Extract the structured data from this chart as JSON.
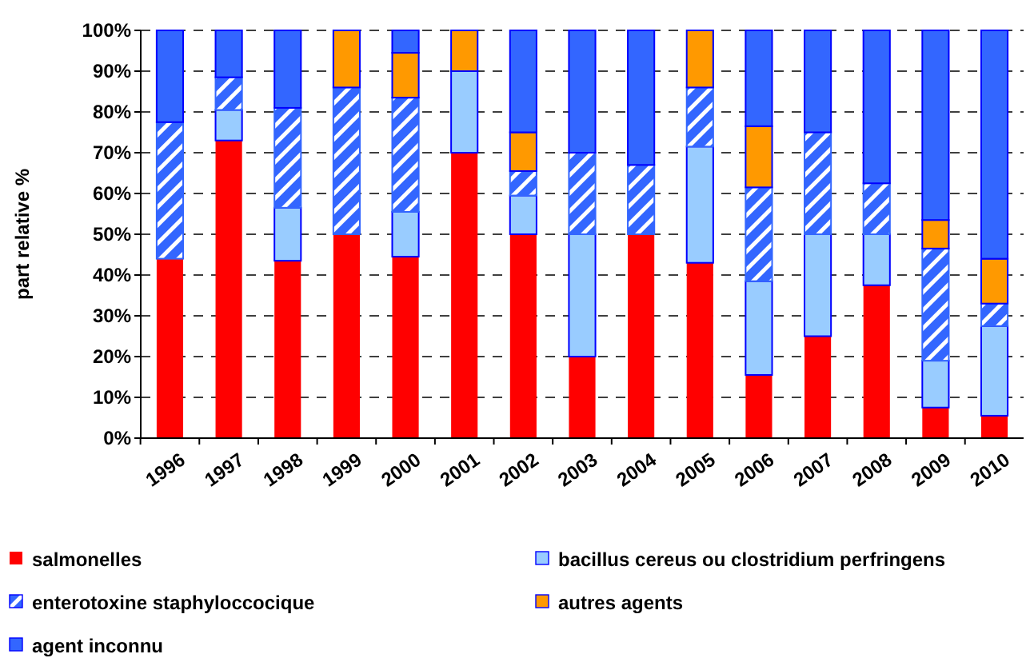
{
  "chart_data": {
    "type": "bar",
    "stacked": true,
    "ylabel": "part relative %",
    "categories": [
      "1996",
      "1997",
      "1998",
      "1999",
      "2000",
      "2001",
      "2002",
      "2003",
      "2004",
      "2005",
      "2006",
      "2007",
      "2008",
      "2009",
      "2010"
    ],
    "series": [
      {
        "name": "salmonelles",
        "color": "#ff0000",
        "values": [
          44,
          73,
          43.5,
          50,
          44.5,
          70,
          50,
          20,
          50,
          43,
          15.5,
          25,
          37.5,
          7.5,
          5.5
        ]
      },
      {
        "name": "bacillus cereus ou clostridium perfringens",
        "color": "#99ccff",
        "values": [
          0,
          7.5,
          13,
          0,
          11,
          20,
          9.5,
          30,
          0,
          28.5,
          23,
          25,
          12.5,
          11.5,
          22
        ]
      },
      {
        "name": "enterotoxine staphyloccocique",
        "color": "#3366ff",
        "values": [
          33.5,
          8,
          24.5,
          36,
          28,
          0,
          6,
          20,
          17,
          14.5,
          23,
          25,
          12.5,
          27.5,
          5.5
        ]
      },
      {
        "name": "autres agents",
        "color": "#ff9900",
        "values": [
          0,
          0,
          0,
          14,
          11,
          10,
          9.5,
          0,
          0,
          14,
          15,
          0,
          0,
          7,
          11
        ]
      },
      {
        "name": "agent inconnu",
        "color": "#3366ff",
        "values": [
          22.5,
          11.5,
          19,
          0,
          5.5,
          0,
          25,
          30,
          33,
          0,
          23.5,
          25,
          37.5,
          46.5,
          56
        ]
      }
    ],
    "ylim": [
      0,
      100
    ],
    "yticks": [
      {
        "value": 0,
        "label": "0%"
      },
      {
        "value": 10,
        "label": "10%"
      },
      {
        "value": 20,
        "label": "20%"
      },
      {
        "value": 30,
        "label": "30%"
      },
      {
        "value": 40,
        "label": "40%"
      },
      {
        "value": 50,
        "label": "50%"
      },
      {
        "value": 60,
        "label": "60%"
      },
      {
        "value": 70,
        "label": "70%"
      },
      {
        "value": 80,
        "label": "80%"
      },
      {
        "value": 90,
        "label": "90%"
      },
      {
        "value": 100,
        "label": "100%"
      }
    ],
    "grid": "y",
    "legend": "bottom"
  }
}
